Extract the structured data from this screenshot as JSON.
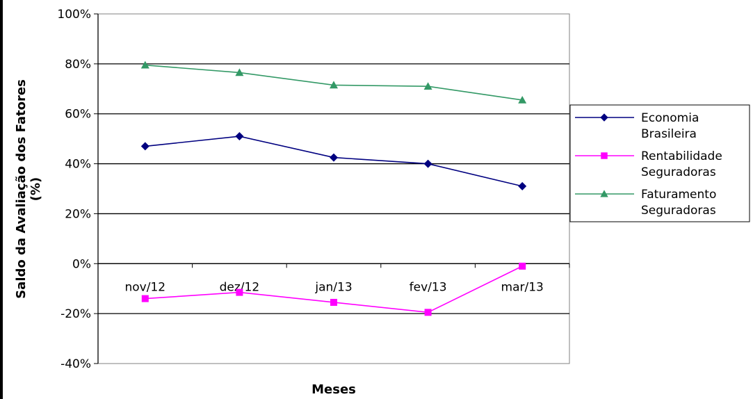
{
  "chart_data": {
    "type": "line",
    "categories": [
      "nov/12",
      "dez/12",
      "jan/13",
      "fev/13",
      "mar/13"
    ],
    "xlabel": "Meses",
    "ylabel_lines": [
      "Saldo da Avaliação dos Fatores",
      "(%)"
    ],
    "ylim": [
      -40,
      100
    ],
    "yticks": [
      -40,
      -20,
      0,
      20,
      40,
      60,
      80,
      100
    ],
    "ytick_labels": [
      "-40%",
      "-20%",
      "0%",
      "20%",
      "40%",
      "60%",
      "80%",
      "100%"
    ],
    "grid": true,
    "legend_position": "right",
    "series": [
      {
        "name_lines": [
          "Economia",
          "Brasileira"
        ],
        "color": "#000080",
        "marker": "diamond",
        "values": [
          47,
          51,
          42.5,
          40,
          31
        ]
      },
      {
        "name_lines": [
          "Rentabilidade",
          "Seguradoras"
        ],
        "color": "#ff00ff",
        "marker": "square",
        "values": [
          -14,
          -11.5,
          -15.5,
          -19.5,
          -1
        ]
      },
      {
        "name_lines": [
          "Faturamento",
          "Seguradoras"
        ],
        "color": "#339966",
        "marker": "triangle",
        "values": [
          79.5,
          76.5,
          71.5,
          71,
          65.5
        ]
      }
    ]
  }
}
